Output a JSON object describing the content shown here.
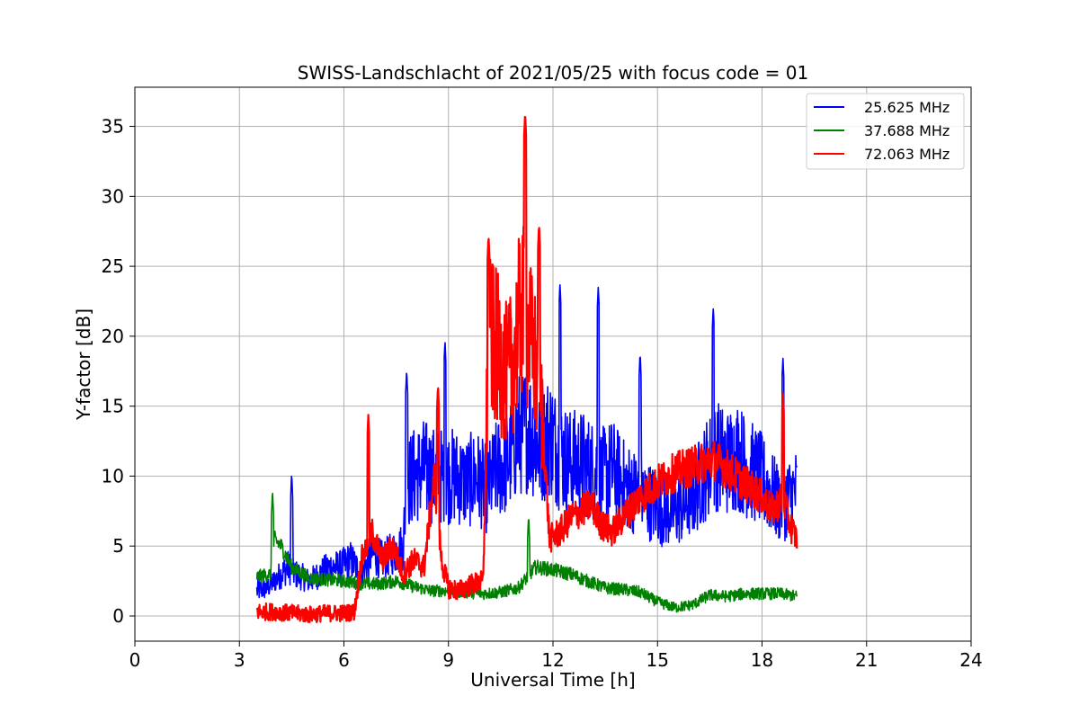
{
  "chart_data": {
    "type": "line",
    "title": "SWISS-Landschlacht of 2021/05/25 with focus code = 01",
    "xlabel": "Universal Time [h]",
    "ylabel": "Y-factor [dB]",
    "xlim": [
      0,
      24
    ],
    "ylim": [
      -1.8,
      37.8
    ],
    "xticks": [
      0,
      3,
      6,
      9,
      12,
      15,
      18,
      21,
      24
    ],
    "yticks": [
      0,
      5,
      10,
      15,
      20,
      25,
      30,
      35
    ],
    "grid": true,
    "legend": {
      "placement": "top-right"
    },
    "series": [
      {
        "name": "25.625 MHz",
        "color": "#0000ff",
        "x": [
          3.5,
          3.8,
          4.0,
          4.2,
          4.4,
          4.6,
          4.8,
          5.0,
          5.3,
          5.6,
          5.9,
          6.2,
          6.5,
          6.8,
          7.1,
          7.4,
          7.7,
          7.8,
          8.0,
          8.3,
          8.6,
          8.9,
          9.2,
          9.5,
          9.8,
          10.1,
          10.4,
          10.7,
          11.0,
          11.3,
          11.6,
          11.9,
          12.2,
          12.5,
          12.8,
          13.1,
          13.4,
          13.7,
          14.0,
          14.3,
          14.6,
          14.9,
          15.2,
          15.5,
          15.8,
          16.1,
          16.4,
          16.7,
          17.0,
          17.3,
          17.6,
          17.9,
          18.2,
          18.5,
          18.8,
          19.0
        ],
        "y": [
          1.8,
          2.0,
          2.5,
          3.0,
          3.5,
          3.0,
          2.8,
          2.5,
          3.0,
          3.5,
          3.5,
          4.0,
          3.0,
          4.5,
          4.0,
          4.5,
          5.0,
          9.5,
          10.0,
          10.5,
          10.0,
          10.0,
          10.0,
          9.5,
          10.0,
          9.0,
          10.5,
          11.0,
          13.0,
          13.5,
          12.0,
          13.0,
          11.5,
          11.0,
          11.0,
          10.5,
          10.0,
          10.5,
          9.5,
          9.0,
          8.5,
          8.0,
          7.5,
          7.5,
          8.0,
          9.0,
          10.5,
          11.5,
          11.0,
          11.5,
          10.5,
          10.0,
          9.0,
          8.0,
          8.5,
          9.0
        ],
        "peaks": [
          {
            "x": 4.5,
            "y": 10.2
          },
          {
            "x": 7.8,
            "y": 17.6
          },
          {
            "x": 8.9,
            "y": 19.7
          },
          {
            "x": 12.2,
            "y": 23.8
          },
          {
            "x": 13.3,
            "y": 23.6
          },
          {
            "x": 14.5,
            "y": 18.8
          },
          {
            "x": 16.6,
            "y": 22.1
          },
          {
            "x": 18.6,
            "y": 18.5
          }
        ]
      },
      {
        "name": "37.688 MHz",
        "color": "#008000",
        "x": [
          3.5,
          3.9,
          4.0,
          4.2,
          4.5,
          5.0,
          5.5,
          6.0,
          6.5,
          7.0,
          7.5,
          8.0,
          8.5,
          9.0,
          9.5,
          10.0,
          10.5,
          11.0,
          11.5,
          12.0,
          12.5,
          13.0,
          13.5,
          14.0,
          14.5,
          15.0,
          15.5,
          16.0,
          16.5,
          17.0,
          17.5,
          18.0,
          18.5,
          19.0
        ],
        "y": [
          2.8,
          3.0,
          5.5,
          5.0,
          3.5,
          2.7,
          2.6,
          2.5,
          2.3,
          2.3,
          2.5,
          2.1,
          1.8,
          1.8,
          1.7,
          1.6,
          1.7,
          2.0,
          3.5,
          3.3,
          3.0,
          2.5,
          2.0,
          1.9,
          1.7,
          1.0,
          0.6,
          0.8,
          1.5,
          1.4,
          1.6,
          1.6,
          1.6,
          1.4
        ],
        "peaks": [
          {
            "x": 3.95,
            "y": 9.0
          },
          {
            "x": 11.3,
            "y": 7.2
          }
        ]
      },
      {
        "name": "72.063 MHz",
        "color": "#ff0000",
        "x": [
          3.5,
          4.0,
          4.5,
          5.0,
          5.5,
          6.0,
          6.3,
          6.5,
          6.8,
          7.1,
          7.4,
          7.7,
          8.0,
          8.3,
          8.6,
          8.8,
          9.0,
          9.3,
          9.6,
          10.0,
          10.15,
          10.4,
          10.7,
          10.9,
          11.1,
          11.3,
          11.5,
          11.7,
          11.9,
          12.2,
          12.5,
          12.8,
          13.1,
          13.4,
          13.7,
          14.0,
          14.5,
          15.0,
          15.5,
          16.0,
          16.6,
          17.0,
          17.5,
          18.0,
          18.3,
          18.6,
          18.8,
          19.0
        ],
        "y": [
          0.3,
          0.3,
          0.2,
          0.1,
          0.2,
          0.2,
          0.3,
          4.0,
          6.0,
          4.0,
          5.0,
          3.0,
          4.0,
          3.5,
          10.0,
          4.0,
          2.0,
          1.8,
          2.2,
          2.5,
          20.0,
          19.0,
          17.0,
          19.0,
          22.0,
          20.0,
          18.0,
          14.0,
          5.5,
          6.0,
          7.0,
          7.5,
          8.0,
          6.5,
          6.0,
          7.0,
          8.5,
          9.5,
          10.3,
          10.7,
          11.2,
          10.5,
          9.5,
          8.5,
          7.5,
          8.5,
          6.5,
          5.5
        ],
        "peaks": [
          {
            "x": 6.7,
            "y": 14.4
          },
          {
            "x": 8.7,
            "y": 16.5
          },
          {
            "x": 10.15,
            "y": 27.2
          },
          {
            "x": 11.2,
            "y": 36.0
          },
          {
            "x": 11.6,
            "y": 28.0
          },
          {
            "x": 18.6,
            "y": 16.0
          }
        ]
      }
    ]
  }
}
